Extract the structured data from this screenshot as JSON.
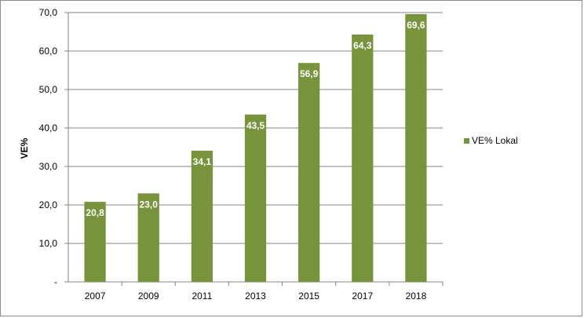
{
  "chart_data": {
    "type": "bar",
    "title": "",
    "xlabel": "",
    "ylabel": "VE%",
    "categories": [
      "2007",
      "2009",
      "2011",
      "2013",
      "2015",
      "2017",
      "2018"
    ],
    "series": [
      {
        "name": "VE% Lokal",
        "values": [
          20.8,
          23.0,
          34.1,
          43.5,
          56.9,
          64.3,
          69.6
        ],
        "value_labels": [
          "20,8",
          "23,0",
          "34,1",
          "43,5",
          "56,9",
          "64,3",
          "69,6"
        ]
      }
    ],
    "ylim": [
      0,
      70
    ],
    "yticks": [
      "-",
      "10,0",
      "20,0",
      "30,0",
      "40,0",
      "50,0",
      "60,0",
      "70,0"
    ],
    "grid": true,
    "legend_position": "right",
    "colors": {
      "bar": "#77933c",
      "grid": "#868686",
      "axis": "#868686",
      "frame": "#8c8c8c"
    }
  }
}
